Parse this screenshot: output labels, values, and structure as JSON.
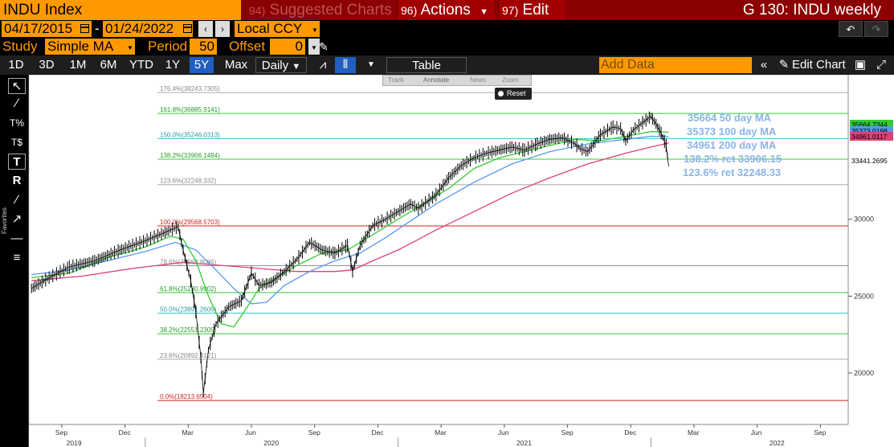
{
  "title_bar": {
    "ticker": "INDU Index",
    "suggested": {
      "num": "94)",
      "label": "Suggested Charts"
    },
    "actions": {
      "num": "96)",
      "label": "Actions"
    },
    "edit": {
      "num": "97)",
      "label": "Edit"
    },
    "window_title": "G 130: INDU weekly"
  },
  "dates": {
    "start": "04/17/2015",
    "end": "01/24/2022",
    "currency": "Local CCY"
  },
  "study": {
    "label": "Study",
    "type": "Simple MA",
    "period_label": "Period",
    "period": "50",
    "offset_label": "Offset",
    "offset": "0"
  },
  "periods": [
    "1D",
    "3D",
    "1M",
    "6M",
    "YTD",
    "1Y",
    "5Y",
    "Max"
  ],
  "active_period": "5Y",
  "frequency": "Daily",
  "table_label": "Table",
  "add_data_placeholder": "Add Data",
  "edit_chart_label": "Edit Chart",
  "favorites_label": "Favorites",
  "overlay_toolbar": {
    "track": "Track",
    "annotate": "Annotate",
    "news": "News",
    "zoom": "Zoom",
    "reset": "Reset"
  },
  "legend": [
    "35664 50 day MA",
    "35373 100 day MA",
    "34961 200 day MA",
    "138.2% ret 33906.15",
    "123.6% ret 32248.33"
  ],
  "colors": {
    "accent": "#ff9900",
    "titlebar": "#8b0000",
    "price": "#000000",
    "ma50": "#33cc33",
    "ma100": "#5599ee",
    "ma200": "#e0407a",
    "legend": "#8ab4e8"
  },
  "chart_data": {
    "type": "line",
    "fib_levels": [
      {
        "label": "176.4%(38243.7305)",
        "value": 38243.7305,
        "color": "#aaaaaa"
      },
      {
        "label": "161.8%(36885.9141)",
        "value": 36885.9141,
        "color": "#33cc33"
      },
      {
        "label": "150.0%(35246.0313)",
        "value": 35246.0313,
        "color": "#33cccc"
      },
      {
        "label": "138.2%(33906.1484)",
        "value": 33906.1484,
        "color": "#33cc33"
      },
      {
        "label": "123.6%(32248.332)",
        "value": 32248.332,
        "color": "#aaaaaa"
      },
      {
        "label": "100.0%(29568.5703)",
        "value": 29568.5703,
        "color": "#dd2222"
      },
      {
        "label": "78.6%(26988.8086)",
        "value": 26988.8086,
        "color": "#888888"
      },
      {
        "label": "61.8%(25230.9902)",
        "value": 25230.9902,
        "color": "#33cc33"
      },
      {
        "label": "50.0%(23891.2605)",
        "value": 23891.2605,
        "color": "#33cccc"
      },
      {
        "label": "38.2%(22551.2305)",
        "value": 22551.2305,
        "color": "#33cc33"
      },
      {
        "label": "23.6%(20892.4121)",
        "value": 20892.4121,
        "color": "#aaaaaa"
      },
      {
        "label": "0.0%(18213.6504)",
        "value": 18213.6504,
        "color": "#dd2222"
      }
    ],
    "y_ticks": [
      "30000",
      "25000",
      "20000"
    ],
    "y_tick_values": [
      30000,
      25000,
      20000
    ],
    "price_labels": [
      {
        "text": "35664.7344",
        "value": 35664.7344,
        "color": "#33cc33"
      },
      {
        "text": "35373.0198",
        "value": 35373.0198,
        "color": "#5599ee"
      },
      {
        "text": "34961.0117",
        "value": 34961.0117,
        "color": "#e0407a"
      },
      {
        "text": "33441.2695",
        "value": 33441.2695,
        "color": "#000000"
      }
    ],
    "x_months": [
      "Sep",
      "Dec",
      "Mar",
      "Jun",
      "Sep",
      "Dec",
      "Mar",
      "Jun",
      "Sep",
      "Dec",
      "Mar",
      "Jun",
      "Sep"
    ],
    "x_month_t": [
      2019.67,
      2019.92,
      2020.17,
      2020.42,
      2020.67,
      2020.92,
      2021.17,
      2021.42,
      2021.67,
      2021.92,
      2022.17,
      2022.42,
      2022.67
    ],
    "x_years": [
      "2019",
      "2020",
      "2021",
      "2022"
    ],
    "x_year_t": [
      2019.72,
      2020.5,
      2021.5,
      2022.5
    ],
    "x_range": [
      2019.54,
      2022.78
    ],
    "y_range": [
      16650,
      39400
    ],
    "price": [
      [
        2019.55,
        25500
      ],
      [
        2019.62,
        26200
      ],
      [
        2019.7,
        26900
      ],
      [
        2019.8,
        27300
      ],
      [
        2019.9,
        28000
      ],
      [
        2020.0,
        28600
      ],
      [
        2020.1,
        29300
      ],
      [
        2020.13,
        29500
      ],
      [
        2020.15,
        28000
      ],
      [
        2020.18,
        26000
      ],
      [
        2020.2,
        24000
      ],
      [
        2020.22,
        21000
      ],
      [
        2020.23,
        18700
      ],
      [
        2020.25,
        21500
      ],
      [
        2020.28,
        23200
      ],
      [
        2020.33,
        24300
      ],
      [
        2020.38,
        24700
      ],
      [
        2020.42,
        26500
      ],
      [
        2020.45,
        25700
      ],
      [
        2020.5,
        25900
      ],
      [
        2020.55,
        26600
      ],
      [
        2020.6,
        27400
      ],
      [
        2020.65,
        28500
      ],
      [
        2020.7,
        28000
      ],
      [
        2020.75,
        27800
      ],
      [
        2020.8,
        28300
      ],
      [
        2020.82,
        26600
      ],
      [
        2020.85,
        28300
      ],
      [
        2020.9,
        29600
      ],
      [
        2020.95,
        30000
      ],
      [
        2021.0,
        30500
      ],
      [
        2021.05,
        31000
      ],
      [
        2021.08,
        30700
      ],
      [
        2021.15,
        31600
      ],
      [
        2021.2,
        32700
      ],
      [
        2021.25,
        33500
      ],
      [
        2021.3,
        34000
      ],
      [
        2021.35,
        34300
      ],
      [
        2021.4,
        34500
      ],
      [
        2021.45,
        34700
      ],
      [
        2021.5,
        34500
      ],
      [
        2021.55,
        34900
      ],
      [
        2021.6,
        35200
      ],
      [
        2021.65,
        35300
      ],
      [
        2021.7,
        34900
      ],
      [
        2021.72,
        34600
      ],
      [
        2021.75,
        34400
      ],
      [
        2021.8,
        35500
      ],
      [
        2021.85,
        36000
      ],
      [
        2021.88,
        35900
      ],
      [
        2021.9,
        35100
      ],
      [
        2021.93,
        35800
      ],
      [
        2021.96,
        36200
      ],
      [
        2022.0,
        36700
      ],
      [
        2022.02,
        36200
      ],
      [
        2022.04,
        35600
      ],
      [
        2022.06,
        34800
      ],
      [
        2022.07,
        33441
      ]
    ],
    "ma50": [
      [
        2019.55,
        26200
      ],
      [
        2019.7,
        26500
      ],
      [
        2019.85,
        27500
      ],
      [
        2020.0,
        28200
      ],
      [
        2020.1,
        28900
      ],
      [
        2020.15,
        28700
      ],
      [
        2020.2,
        27300
      ],
      [
        2020.25,
        25000
      ],
      [
        2020.3,
        23200
      ],
      [
        2020.35,
        23000
      ],
      [
        2020.4,
        24200
      ],
      [
        2020.45,
        25500
      ],
      [
        2020.5,
        26000
      ],
      [
        2020.6,
        27000
      ],
      [
        2020.7,
        27800
      ],
      [
        2020.8,
        28000
      ],
      [
        2020.9,
        29000
      ],
      [
        2021.0,
        30000
      ],
      [
        2021.1,
        31000
      ],
      [
        2021.2,
        32000
      ],
      [
        2021.3,
        33300
      ],
      [
        2021.4,
        34000
      ],
      [
        2021.5,
        34400
      ],
      [
        2021.6,
        34800
      ],
      [
        2021.7,
        35200
      ],
      [
        2021.8,
        35100
      ],
      [
        2021.9,
        35400
      ],
      [
        2022.0,
        35700
      ],
      [
        2022.07,
        35664
      ]
    ],
    "ma100": [
      [
        2019.55,
        26400
      ],
      [
        2019.7,
        26700
      ],
      [
        2019.85,
        27300
      ],
      [
        2020.0,
        27900
      ],
      [
        2020.12,
        28500
      ],
      [
        2020.2,
        28000
      ],
      [
        2020.28,
        26700
      ],
      [
        2020.35,
        25500
      ],
      [
        2020.42,
        24500
      ],
      [
        2020.48,
        24600
      ],
      [
        2020.55,
        25700
      ],
      [
        2020.65,
        26600
      ],
      [
        2020.75,
        27300
      ],
      [
        2020.85,
        27800
      ],
      [
        2020.95,
        28800
      ],
      [
        2021.05,
        29900
      ],
      [
        2021.15,
        31000
      ],
      [
        2021.3,
        32400
      ],
      [
        2021.45,
        33600
      ],
      [
        2021.6,
        34400
      ],
      [
        2021.75,
        34900
      ],
      [
        2021.9,
        35200
      ],
      [
        2022.0,
        35400
      ],
      [
        2022.07,
        35373
      ]
    ],
    "ma200": [
      [
        2019.55,
        26000
      ],
      [
        2019.75,
        26300
      ],
      [
        2019.95,
        26800
      ],
      [
        2020.15,
        27200
      ],
      [
        2020.3,
        27000
      ],
      [
        2020.45,
        26800
      ],
      [
        2020.6,
        26600
      ],
      [
        2020.75,
        26600
      ],
      [
        2020.82,
        26700
      ],
      [
        2020.9,
        27300
      ],
      [
        2021.0,
        28000
      ],
      [
        2021.15,
        29300
      ],
      [
        2021.3,
        30500
      ],
      [
        2021.45,
        31700
      ],
      [
        2021.6,
        32700
      ],
      [
        2021.75,
        33600
      ],
      [
        2021.9,
        34300
      ],
      [
        2022.0,
        34700
      ],
      [
        2022.07,
        34961
      ]
    ]
  }
}
